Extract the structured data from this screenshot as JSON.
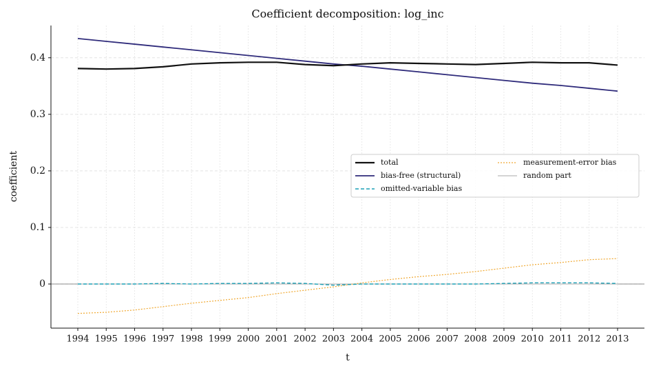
{
  "chart_data": {
    "type": "line",
    "title": "Coefficient decomposition: log_inc",
    "x_label": "t",
    "y_label": "coefficient",
    "categories": [
      "1994",
      "1995",
      "1996",
      "1997",
      "1998",
      "1999",
      "2000",
      "2001",
      "2002",
      "2003",
      "2004",
      "2005",
      "2006",
      "2007",
      "2008",
      "2009",
      "2010",
      "2011",
      "2012",
      "2013"
    ],
    "series": [
      {
        "name": "total",
        "color": "#111111",
        "width": 2.2,
        "dash": "",
        "values": [
          0.381,
          0.38,
          0.381,
          0.384,
          0.389,
          0.391,
          0.392,
          0.392,
          0.388,
          0.386,
          0.389,
          0.391,
          0.39,
          0.389,
          0.388,
          0.39,
          0.392,
          0.391,
          0.391,
          0.387
        ]
      },
      {
        "name": "bias-free (structural)",
        "color": "#2e2a7a",
        "width": 1.8,
        "dash": "",
        "values": [
          0.434,
          0.429,
          0.424,
          0.419,
          0.414,
          0.409,
          0.404,
          0.399,
          0.394,
          0.389,
          0.385,
          0.38,
          0.375,
          0.37,
          0.365,
          0.36,
          0.355,
          0.351,
          0.346,
          0.341
        ]
      },
      {
        "name": "omitted-variable bias",
        "color": "#1a9fb5",
        "width": 1.4,
        "dash": "5 3",
        "values": [
          0.0,
          0.0,
          0.0,
          0.001,
          0.0,
          0.001,
          0.001,
          0.002,
          0.001,
          -0.002,
          0.0,
          0.0,
          0.0,
          0.0,
          0.0,
          0.001,
          0.002,
          0.002,
          0.002,
          0.001
        ]
      },
      {
        "name": "measurement-error bias",
        "color": "#f0a830",
        "width": 1.2,
        "dash": "2 2",
        "values": [
          -0.052,
          -0.05,
          -0.046,
          -0.04,
          -0.034,
          -0.029,
          -0.024,
          -0.017,
          -0.011,
          -0.005,
          0.002,
          0.008,
          0.013,
          0.017,
          0.022,
          0.028,
          0.034,
          0.038,
          0.043,
          0.045
        ]
      },
      {
        "name": "random part",
        "color": "#aaaaaa",
        "width": 1.0,
        "dash": "",
        "values": [
          0,
          0,
          0,
          0,
          0,
          0,
          0,
          0,
          0,
          0,
          0,
          0,
          0,
          0,
          0,
          0,
          0,
          0,
          0,
          0
        ]
      }
    ],
    "ylim": [
      -0.078,
      0.457
    ],
    "yticks": [
      0.0,
      0.1,
      0.2,
      0.3,
      0.4
    ],
    "grid": true,
    "legend": "center right"
  }
}
